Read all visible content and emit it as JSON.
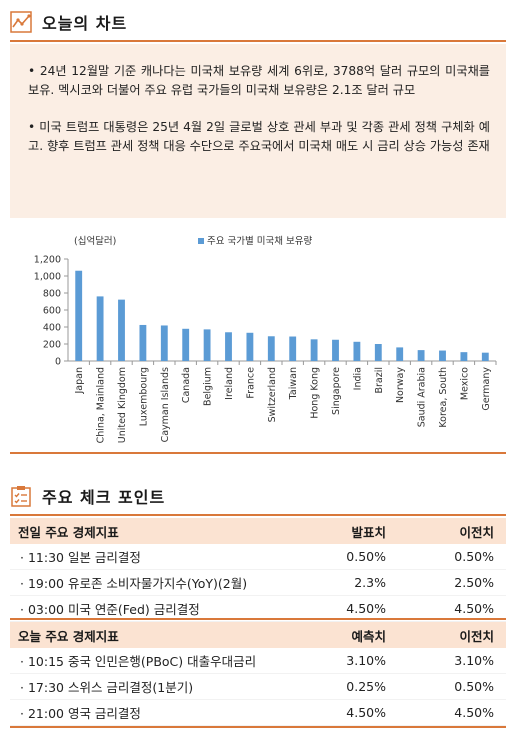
{
  "chart_section": {
    "title": "오늘의 차트",
    "bullets": [
      "• 24년 12월말 기준 캐나다는 미국채 보유량 세계 6위로, 3788억 달러 규모의 미국채를 보유. 멕시코와 더불어 주요 유럽 국가들의 미국채 보유량은 2.1조 달러 규모",
      "• 미국 트럼프 대통령은 25년 4월 2일 글로벌 상호 관세 부과 및 각종 관세 정책 구체화 예고. 향후 트럼프 관세 정책 대응 수단으로 주요국에서 미국채 매도 시 금리 상승 가능성 존재"
    ]
  },
  "chart_data": {
    "type": "bar",
    "unit_label": "(십억달러)",
    "legend": "주요 국가별 미국채 보유량",
    "legend_position": "top",
    "color": "#5b9bd5",
    "categories": [
      "Japan",
      "China, Mainland",
      "United Kingdom",
      "Luxembourg",
      "Cayman Islands",
      "Canada",
      "Belgium",
      "Ireland",
      "France",
      "Switzerland",
      "Taiwan",
      "Hong Kong",
      "Singapore",
      "India",
      "Brazil",
      "Norway",
      "Saudi Arabia",
      "Korea, South",
      "Mexico",
      "Germany"
    ],
    "values": [
      1062,
      760,
      722,
      424,
      418,
      379,
      372,
      338,
      332,
      291,
      288,
      255,
      250,
      226,
      200,
      160,
      128,
      123,
      104,
      98
    ],
    "ylim": [
      0,
      1200
    ],
    "yticks": [
      "0",
      "200",
      "400",
      "600",
      "800",
      "1,000",
      "1,200"
    ],
    "grid": false
  },
  "check_section": {
    "title": "주요 체크 포인트",
    "groups": [
      {
        "header": [
          "전일 주요 경제지표",
          "발표치",
          "이전치"
        ],
        "rows": [
          [
            "· 11:30  일본 금리결정",
            "0.50%",
            "0.50%"
          ],
          [
            "· 19:00  유로존 소비자물가지수(YoY)(2월)",
            "2.3%",
            "2.50%"
          ],
          [
            "· 03:00  미국 연준(Fed) 금리결정",
            "4.50%",
            "4.50%"
          ]
        ]
      },
      {
        "header": [
          "오늘 주요 경제지표",
          "예측치",
          "이전치"
        ],
        "rows": [
          [
            "· 10:15  중국 인민은행(PBoC) 대출우대금리",
            "3.10%",
            "3.10%"
          ],
          [
            "· 17:30  스위스 금리결정(1분기)",
            "0.25%",
            "0.50%"
          ],
          [
            "· 21:00  영국 금리결정",
            "4.50%",
            "4.50%"
          ]
        ]
      }
    ]
  },
  "colors": {
    "accent": "#d9783a",
    "summary_bg": "#fbeee4",
    "table_header_bg": "#fbe3d2",
    "bar": "#5b9bd5"
  }
}
